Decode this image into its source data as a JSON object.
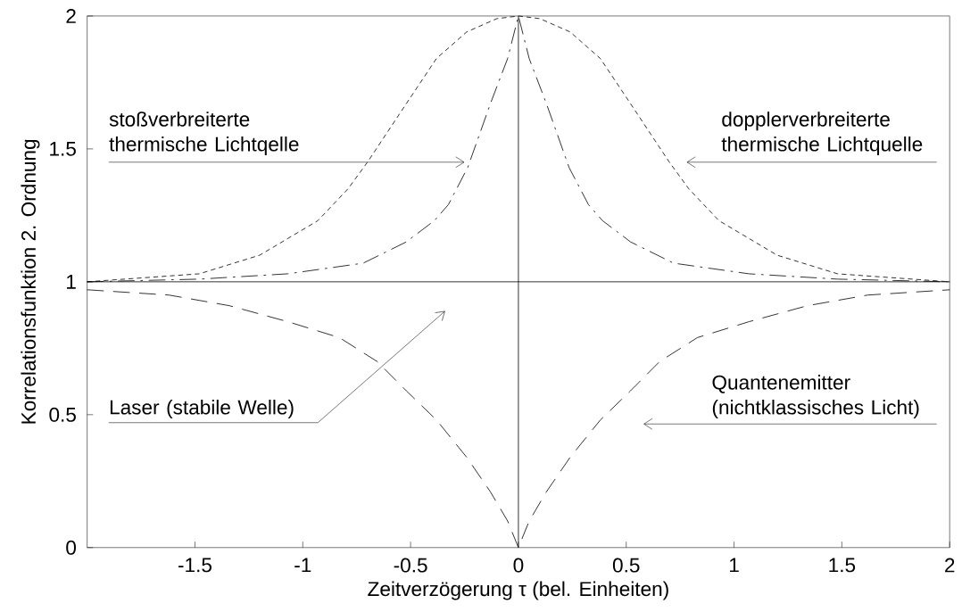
{
  "chart_data": {
    "type": "line",
    "xlabel": "Zeitverzögerung  τ  (bel. Einheiten)",
    "ylabel": "Korrelationsfunktion 2. Ordnung",
    "xlim": [
      -2,
      2
    ],
    "ylim": [
      0,
      2
    ],
    "xticks": [
      -1.5,
      -1,
      -0.5,
      0,
      0.5,
      1,
      1.5,
      2
    ],
    "yticks": [
      0,
      0.5,
      1,
      1.5,
      2
    ],
    "grid": false,
    "series": [
      {
        "x": [
          -2,
          -1.48,
          -1.2,
          -0.93,
          -0.79,
          -0.7,
          -0.52,
          -0.38,
          -0.24,
          -0.1,
          0,
          0.1,
          0.24,
          0.38,
          0.52,
          0.7,
          0.79,
          0.93,
          1.2,
          1.48,
          2
        ],
        "values": [
          1.0,
          1.03,
          1.1,
          1.23,
          1.35,
          1.45,
          1.67,
          1.84,
          1.94,
          1.99,
          2,
          1.99,
          1.94,
          1.84,
          1.67,
          1.45,
          1.35,
          1.23,
          1.1,
          1.03,
          1.0
        ],
        "color": "#000000",
        "line_style": "dotted"
      },
      {
        "x": [
          -2,
          -1.48,
          -1.07,
          -0.72,
          -0.52,
          -0.39,
          -0.325,
          -0.235,
          -0.13,
          -0.05,
          0,
          0.05,
          0.13,
          0.235,
          0.325,
          0.39,
          0.52,
          0.72,
          1.07,
          1.48,
          2
        ],
        "values": [
          1.0,
          1.01,
          1.03,
          1.07,
          1.15,
          1.23,
          1.29,
          1.43,
          1.67,
          1.84,
          2,
          1.84,
          1.67,
          1.43,
          1.29,
          1.23,
          1.15,
          1.07,
          1.03,
          1.01,
          1.0
        ],
        "color": "#000000",
        "line_style": "dashdot"
      },
      {
        "x": [
          -2,
          -1.62,
          -1.34,
          -1.07,
          -0.83,
          -0.655,
          -0.52,
          -0.38,
          -0.24,
          -0.13,
          -0.05,
          0,
          0.05,
          0.13,
          0.24,
          0.38,
          0.52,
          0.655,
          0.83,
          1.07,
          1.34,
          1.62,
          2
        ],
        "values": [
          0.97,
          0.95,
          0.91,
          0.85,
          0.79,
          0.7,
          0.59,
          0.48,
          0.34,
          0.21,
          0.1,
          0,
          0.1,
          0.21,
          0.34,
          0.48,
          0.59,
          0.7,
          0.79,
          0.85,
          0.91,
          0.95,
          0.97
        ],
        "color": "#000000",
        "line_style": "dashed"
      },
      {
        "x": [
          -2,
          2
        ],
        "values": [
          1,
          1
        ],
        "color": "#000000",
        "line_style": "solid"
      }
    ],
    "ref_lines": [
      {
        "axis": "x",
        "value": 0,
        "color": "#000000",
        "line_style": "solid"
      }
    ],
    "annotations": [
      "stoßverbreiterte thermische Lichtqelle",
      "dopplerverbreiterte thermische Lichtquelle",
      "Laser (stabile Welle)",
      "Quantenemitter (nichtklassisches Licht)"
    ]
  }
}
